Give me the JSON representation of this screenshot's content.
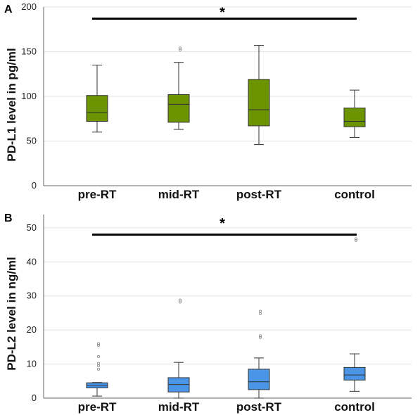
{
  "chart_data": [
    {
      "type": "boxplot",
      "panel_label": "A",
      "ylabel": "PD-L1 level in pg/ml",
      "ylim": [
        0,
        200
      ],
      "yticks": [
        0,
        50,
        100,
        150,
        200
      ],
      "categories": [
        "pre-RT",
        "mid-RT",
        "post-RT",
        "control"
      ],
      "color": "#6b9400",
      "grid": "horizontal",
      "boxes": [
        {
          "min": 60,
          "q1": 72,
          "median": 82,
          "q3": 101,
          "max": 135,
          "outliers": []
        },
        {
          "min": 63,
          "q1": 71,
          "median": 91,
          "q3": 102,
          "max": 138,
          "outliers": [
            152,
            154
          ]
        },
        {
          "min": 46,
          "q1": 67,
          "median": 85,
          "q3": 119,
          "max": 157,
          "outliers": []
        },
        {
          "min": 54,
          "q1": 66,
          "median": 72,
          "q3": 87,
          "max": 107,
          "outliers": []
        }
      ],
      "significance": {
        "label": "*",
        "value": 187
      }
    },
    {
      "type": "boxplot",
      "panel_label": "B",
      "ylabel": "PD-L2 level in ng/ml",
      "ylim": [
        0,
        50
      ],
      "yticks": [
        0,
        10,
        20,
        30,
        40,
        50
      ],
      "categories": [
        "pre-RT",
        "mid-RT",
        "post-RT",
        "control"
      ],
      "color": "#4a95e6",
      "grid": "horizontal",
      "boxes": [
        {
          "min": 0.6,
          "q1": 3,
          "median": 3.8,
          "q3": 4.5,
          "max": 4.6,
          "outliers": [
            8.5,
            9.5,
            10.2,
            12.2,
            15.5,
            16
          ]
        },
        {
          "min": 0,
          "q1": 1.8,
          "median": 4,
          "q3": 6,
          "max": 10.5,
          "outliers": [
            28.2,
            28.8
          ]
        },
        {
          "min": 0,
          "q1": 2.5,
          "median": 4.8,
          "q3": 8.5,
          "max": 11.8,
          "outliers": [
            17.8,
            18.3,
            24.8,
            25.5
          ]
        },
        {
          "min": 2,
          "q1": 5.3,
          "median": 6.8,
          "q3": 9,
          "max": 13,
          "outliers": [
            46.3,
            46.8
          ]
        }
      ],
      "significance": {
        "label": "*",
        "value": 48
      }
    }
  ]
}
